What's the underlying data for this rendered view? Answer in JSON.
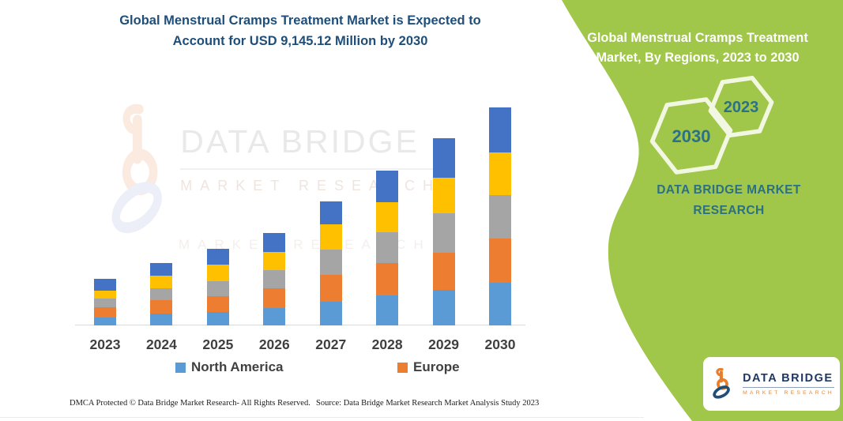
{
  "header": {
    "title_line1": "Global Menstrual Cramps Treatment Market is Expected to",
    "title_line2": "Account for USD 9,145.12 Million by 2030"
  },
  "watermark": {
    "brand": "DATA BRIDGE",
    "sub": "MARKET RESEARCH",
    "sub2": "MARKET RESEARCH"
  },
  "chart_data": {
    "type": "bar",
    "subtype": "stacked",
    "title": "Global Menstrual Cramps Treatment Market is Expected to Account for USD 9,145.12 Million by 2030",
    "categories": [
      "2023",
      "2024",
      "2025",
      "2026",
      "2027",
      "2028",
      "2029",
      "2030"
    ],
    "unit": "USD Million",
    "value_basis": "estimated from bar heights; only 2030 total (9,145.12) is labeled",
    "series": [
      {
        "name": "North America",
        "color": "#5B9BD5",
        "in_legend": true,
        "values": [
          331,
          497,
          563,
          729,
          994,
          1259,
          1491,
          1789
        ]
      },
      {
        "name": "Europe",
        "color": "#ED7D31",
        "in_legend": true,
        "values": [
          431,
          563,
          663,
          828,
          1127,
          1359,
          1557,
          1856
        ]
      },
      {
        "name": "(unlabeled gray)",
        "color": "#A5A5A5",
        "in_legend": false,
        "values": [
          364,
          497,
          630,
          762,
          1060,
          1292,
          1657,
          1822
        ]
      },
      {
        "name": "(unlabeled yellow)",
        "color": "#FFC000",
        "in_legend": false,
        "values": [
          331,
          530,
          696,
          762,
          1060,
          1259,
          1491,
          1789
        ]
      },
      {
        "name": "(unlabeled dark blue)",
        "color": "#4472C4",
        "in_legend": false,
        "values": [
          497,
          530,
          663,
          795,
          961,
          1325,
          1657,
          1889
        ]
      }
    ],
    "totals": [
      1954,
      2617,
      3215,
      3876,
      5202,
      6494,
      7853,
      9145.12
    ],
    "ylim": [
      0,
      9600
    ],
    "y_axis_visible": false,
    "gridlines": false,
    "legend_position": "bottom"
  },
  "legend": [
    {
      "label": "North America",
      "color": "#5B9BD5"
    },
    {
      "label": "Europe",
      "color": "#ED7D31"
    }
  ],
  "panel": {
    "title_line1": "Global Menstrual Cramps Treatment",
    "title_line2": "Market, By Regions, 2023 to 2030",
    "hexagons": [
      {
        "label": "2030"
      },
      {
        "label": "2023"
      }
    ],
    "brand_line1": "DATA BRIDGE MARKET",
    "brand_line2": "RESEARCH"
  },
  "badge": {
    "brand": "DATA BRIDGE",
    "sub": "MARKET RESEARCH"
  },
  "footer": {
    "dmca": "DMCA Protected © Data Bridge Market Research-  All Rights Reserved.",
    "source": "Source: Data Bridge Market Research  Market Analysis Study 2023"
  },
  "colors": {
    "accent_green": "#A0C64A",
    "title_navy": "#1F4E79",
    "teal_text": "#2B7083",
    "hex_number_teal": "#2C7186",
    "axis_label_gray": "#404040",
    "logo_orange": "#E87E2B",
    "logo_navy": "#1F4E79"
  }
}
